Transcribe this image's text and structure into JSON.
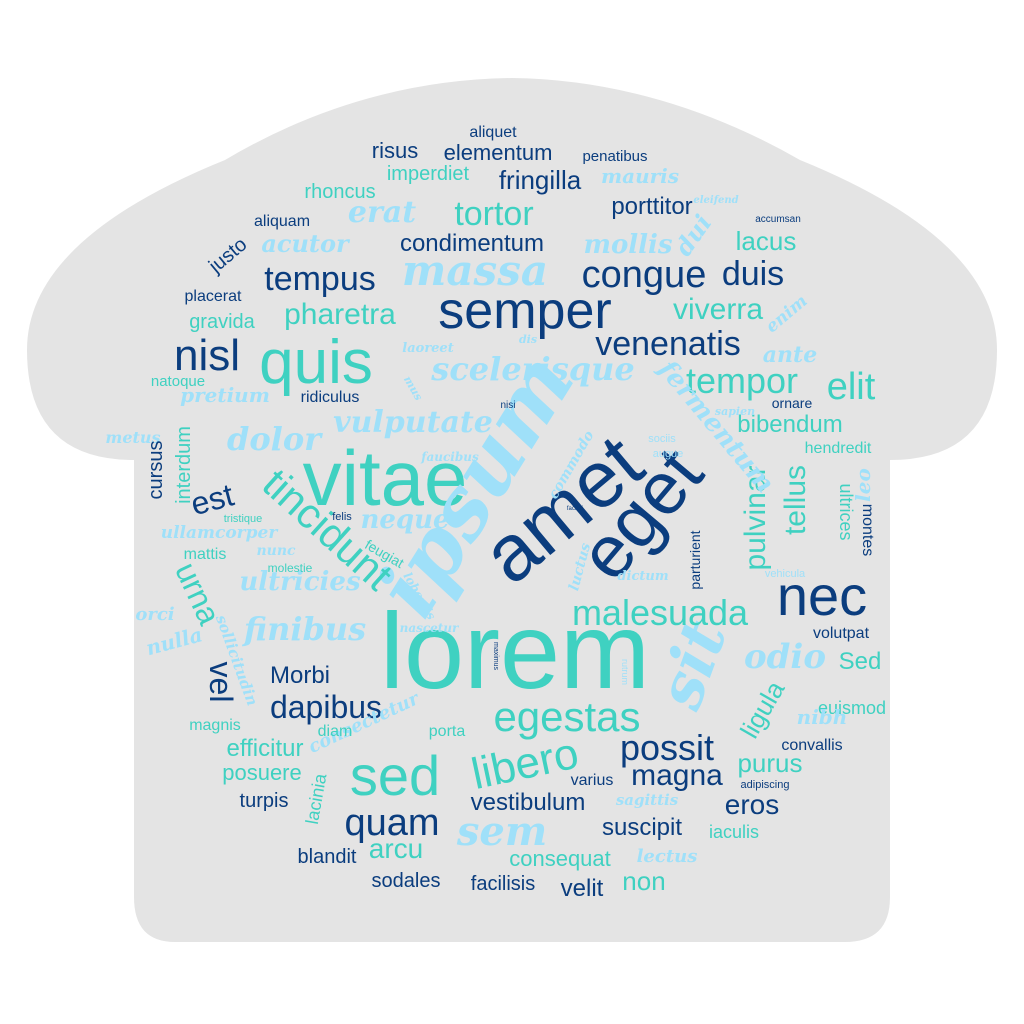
{
  "colors": {
    "background": "#ffffff",
    "shape_fill": "#e4e4e4",
    "navy": "#0b3d7e",
    "teal": "#3fd1c1",
    "light_blue": "#9fe0f9"
  },
  "words": {
    "lorem": "lorem",
    "vitae": "vitae",
    "ipsum": "ipsum",
    "amet": "amet",
    "eget": "eget",
    "quis": "quis",
    "semper": "semper",
    "nec": "nec",
    "sed": "sed",
    "sit": "sit",
    "massa": "massa",
    "nisl": "nisl",
    "congue": "congue",
    "tempus": "tempus",
    "duis": "duis",
    "tincidunt": "tincidunt",
    "libero": "libero",
    "egestas": "egestas",
    "malesuada": "malesuada",
    "possit": "possit",
    "tempor": "tempor",
    "elit": "elit",
    "venenatis": "venenatis",
    "scelerisque": "scelerisque",
    "vulputate": "vulputate",
    "tortor": "tortor",
    "erat": "erat",
    "quam": "quam",
    "sem": "sem",
    "magna": "magna",
    "dapibus": "dapibus",
    "vel": "vel",
    "urna": "urna",
    "neque": "neque",
    "dolor": "dolor",
    "est": "est",
    "finibus": "finibus",
    "ultricies": "ultricies",
    "odio": "odio",
    "pulvinar": "pulvinar",
    "tellus": "tellus",
    "fermentum": "fermentum",
    "condimentum": "condimentum",
    "pharetra": "pharetra",
    "viverra": "viverra",
    "lacus": "lacus",
    "fringilla": "fringilla",
    "porttitor": "porttitor",
    "mollis": "mollis",
    "acutor": "acutor",
    "dui": "dui",
    "bibendum": "bibendum",
    "ligula": "ligula",
    "Morbi": "Morbi",
    "Sed": "Sed",
    "vestibulum": "vestibulum",
    "eros": "eros",
    "purus": "purus",
    "suscipit": "suscipit",
    "arcu": "arcu",
    "consequat": "consequat",
    "non": "non",
    "velit": "velit",
    "facilisis": "facilisis",
    "sodales": "sodales",
    "blandit": "blandit",
    "turpis": "turpis",
    "posuere": "posuere",
    "efficitur": "efficitur",
    "consectetur": "consectetur",
    "magnis": "magnis",
    "diam": "diam",
    "porta": "porta",
    "lacinia": "lacinia",
    "varius": "varius",
    "sagittis": "sagittis",
    "lectus": "lectus",
    "iaculis": "iaculis",
    "adipiscing": "adipiscing",
    "convallis": "convallis",
    "euismod": "euismod",
    "volutpat": "volutpat",
    "nibh": "nibh",
    "nulla": "nulla",
    "orci": "orci",
    "sollicitudin": "sollicitudin",
    "mattis": "mattis",
    "nunc": "nunc",
    "ullamcorper": "ullamcorper",
    "tristique": "tristique",
    "felis": "felis",
    "molestie": "molestie",
    "feugiat": "feugiat",
    "lobortis": "lobortis",
    "nascetur": "nascetur",
    "maximus": "maximus",
    "pretium": "pretium",
    "metus": "metus",
    "cursus": "cursus",
    "interdum": "interdum",
    "natoque": "natoque",
    "ridiculus": "ridiculus",
    "laoreet": "laoreet",
    "mus": "mus",
    "dis": "dis",
    "nisi": "nisi",
    "faucibus": "faucibus",
    "gravida": "gravida",
    "placerat": "placerat",
    "justo": "justo",
    "aliquam": "aliquam",
    "rhoncus": "rhoncus",
    "risus": "risus",
    "elementum": "elementum",
    "aliquet": "aliquet",
    "penatibus": "penatibus",
    "imperdiet": "imperdiet",
    "mauris": "mauris",
    "eleifend": "eleifend",
    "accumsan": "accumsan",
    "enim": "enim",
    "ante": "ante",
    "ornare": "ornare",
    "sapien": "sapien",
    "sociis": "sociis",
    "augue": "augue",
    "hendredit": "hendredit",
    "leo": "leo",
    "ultrices": "ultrices",
    "montes": "montes",
    "parturient": "parturient",
    "vehicula": "vehicula",
    "dictum": "dictum",
    "commodo": "commodo",
    "luctus": "luctus",
    "facilisi": "facilisi",
    "rutrum": "rutrum"
  }
}
